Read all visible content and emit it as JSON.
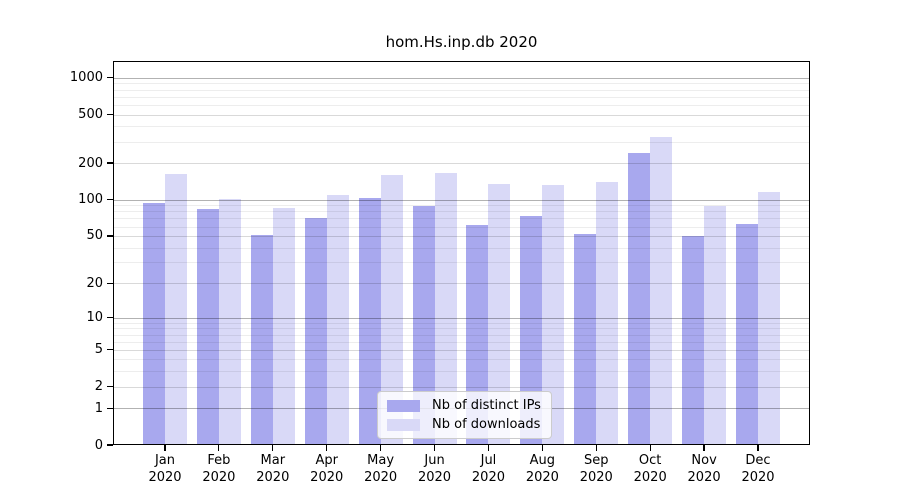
{
  "title": "hom.Hs.inp.db 2020",
  "chart_data": {
    "type": "bar",
    "categories": [
      "Jan",
      "Feb",
      "Mar",
      "Apr",
      "May",
      "Jun",
      "Jul",
      "Aug",
      "Sep",
      "Oct",
      "Nov",
      "Dec"
    ],
    "year_label": "2020",
    "series": [
      {
        "name": "Nb of distinct IPs",
        "color": "#a8a8ee",
        "values": [
          93,
          83,
          51,
          71,
          103,
          88,
          62,
          73,
          52,
          243,
          50,
          63
        ]
      },
      {
        "name": "Nb of downloads",
        "color": "#d9d9f7",
        "values": [
          164,
          102,
          85,
          110,
          161,
          167,
          135,
          131,
          141,
          330,
          88,
          115
        ]
      }
    ],
    "title": "hom.Hs.inp.db 2020",
    "xlabel": "",
    "ylabel": "",
    "yscale": "log1p",
    "ylim": [
      0,
      1370
    ],
    "yticks": [
      0,
      1,
      2,
      5,
      10,
      20,
      50,
      100,
      200,
      500,
      1000
    ],
    "grid": true,
    "legend_position": "lower-center",
    "colors": {
      "background": "#ffffff",
      "axis": "#000000",
      "grid_major": "#b3b3b3",
      "grid_mid": "#d6d6d6",
      "grid_minor": "#ededed",
      "legend_border": "#cccccc"
    }
  }
}
